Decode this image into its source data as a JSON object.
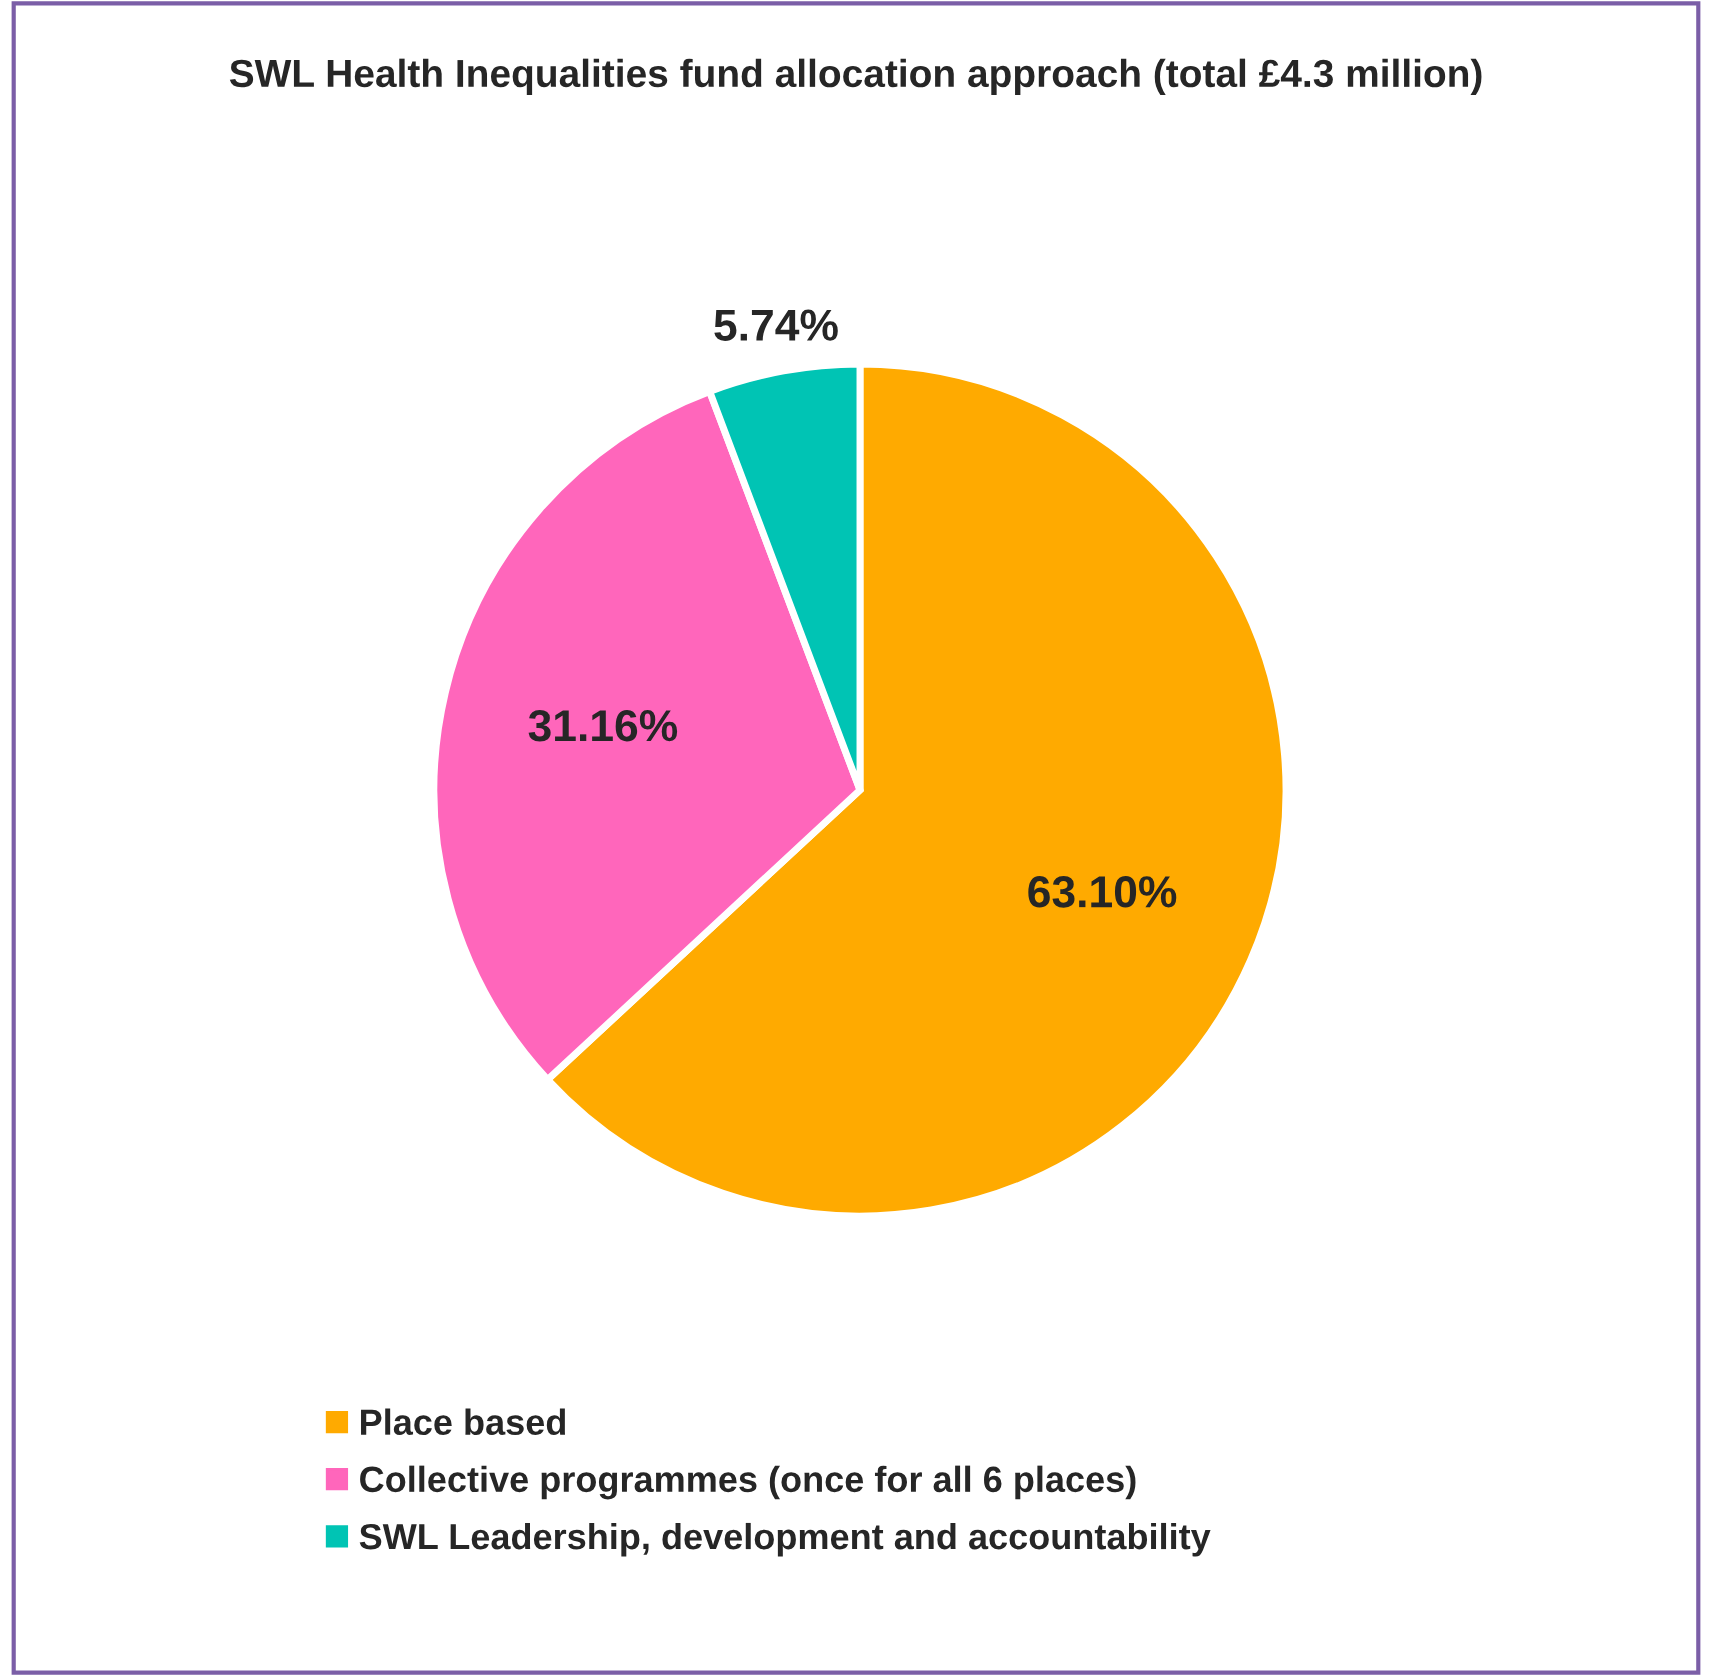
{
  "chart_data": {
    "type": "pie",
    "title": "SWL Health Inequalities fund allocation approach (total £4.3 million)",
    "categories": [
      "Place based",
      "Collective programmes (once for all 6 places)",
      "SWL Leadership, development and accountability"
    ],
    "values": [
      63.1,
      31.16,
      5.74
    ],
    "colors": [
      "#ffaa00",
      "#ff66bb",
      "#00c4b4"
    ],
    "value_labels": [
      "63.10%",
      "31.16%",
      "5.74%"
    ],
    "legend": "bottom"
  }
}
